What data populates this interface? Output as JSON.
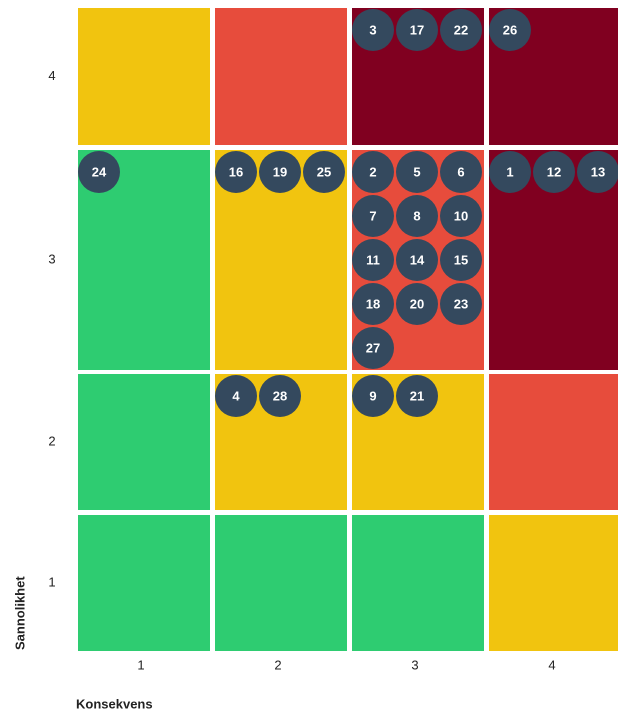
{
  "y_axis": {
    "title": "Sannolikhet",
    "labels": [
      4,
      3,
      2,
      1
    ]
  },
  "x_axis": {
    "title": "Konsekvens",
    "labels": [
      1,
      2,
      3,
      4
    ]
  },
  "rows": [
    {
      "cells": [
        {
          "color": "#f1c40f",
          "items": []
        },
        {
          "color": "#e74c3c",
          "items": []
        },
        {
          "color": "#800020",
          "items": [
            3,
            17,
            22
          ]
        },
        {
          "color": "#800020",
          "items": [
            26
          ]
        }
      ]
    },
    {
      "cells": [
        {
          "color": "#2ecc71",
          "items": [
            24
          ]
        },
        {
          "color": "#f1c40f",
          "items": [
            16,
            19,
            25
          ]
        },
        {
          "color": "#e74c3c",
          "items": [
            2,
            5,
            6,
            7,
            8,
            10,
            11,
            14,
            15,
            18,
            20,
            23,
            27
          ]
        },
        {
          "color": "#800020",
          "items": [
            1,
            12,
            13
          ]
        }
      ]
    },
    {
      "cells": [
        {
          "color": "#2ecc71",
          "items": []
        },
        {
          "color": "#f1c40f",
          "items": [
            4,
            28
          ]
        },
        {
          "color": "#f1c40f",
          "items": [
            9,
            21
          ]
        },
        {
          "color": "#e74c3c",
          "items": []
        }
      ]
    },
    {
      "cells": [
        {
          "color": "#2ecc71",
          "items": []
        },
        {
          "color": "#2ecc71",
          "items": []
        },
        {
          "color": "#2ecc71",
          "items": []
        },
        {
          "color": "#f1c40f",
          "items": []
        }
      ]
    }
  ],
  "item_color": "#34495e"
}
